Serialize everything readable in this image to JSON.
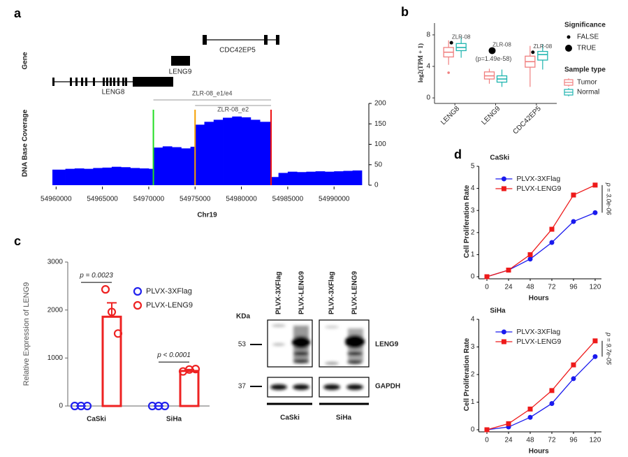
{
  "chart_data": [
    {
      "type": "area",
      "panel": "a",
      "gene_track_label": "Gene",
      "genes": [
        "LENG8",
        "LENG9",
        "CDC42EP5"
      ],
      "ylabel": "DNA Base Coverage",
      "xlabel": "Chr19",
      "color": "#0000ff",
      "x": [
        54959600,
        54961000,
        54962000,
        54963000,
        54964000,
        54965000,
        54966000,
        54967000,
        54968000,
        54969000,
        54970000,
        54970500,
        54971500,
        54972500,
        54973500,
        54974500,
        54975000,
        54976000,
        54977000,
        54978000,
        54979000,
        54980000,
        54981000,
        54982000,
        54983200,
        54984000,
        54985000,
        54986000,
        54987000,
        54988000,
        54989000,
        54990000,
        54991000,
        54992000
      ],
      "values": [
        38,
        40,
        41,
        40,
        42,
        43,
        45,
        44,
        42,
        41,
        40,
        92,
        95,
        93,
        90,
        94,
        148,
        155,
        160,
        165,
        168,
        166,
        160,
        155,
        20,
        30,
        33,
        32,
        33,
        34,
        33,
        34,
        35,
        36
      ],
      "xlim": [
        54959600,
        54993000
      ],
      "ylim": [
        0,
        200
      ],
      "xticks": [
        54960000,
        54965000,
        54970000,
        54975000,
        54980000,
        54985000,
        54990000
      ],
      "yticks": [
        0,
        50,
        100,
        150,
        200
      ],
      "markers": [
        {
          "x": 54970500,
          "color": "#22dd22"
        },
        {
          "x": 54975000,
          "color": "#f5a000"
        },
        {
          "x": 54983200,
          "color": "#ee1111"
        }
      ],
      "annotations": [
        {
          "text": "ZLR-08_e1/e4",
          "x": [
            54970500,
            54983200
          ]
        },
        {
          "text": "ZLR-08_e2",
          "x": [
            54975000,
            54983200
          ]
        }
      ]
    },
    {
      "type": "box",
      "panel": "b",
      "ylabel": "log2(TPM + 1)",
      "categories": [
        "LENG8",
        "LENG9",
        "CDC42EP5"
      ],
      "ylim": [
        -0.7,
        9.5
      ],
      "yticks": [
        0,
        4,
        8
      ],
      "legend_title": "Sample type",
      "series": [
        {
          "name": "Tumor",
          "color": "#f07f7f",
          "min": [
            4.2,
            1.8,
            1.4
          ],
          "q1": [
            5.2,
            2.4,
            3.9
          ],
          "median": [
            5.8,
            2.8,
            4.6
          ],
          "q3": [
            6.4,
            3.3,
            5.3
          ],
          "max": [
            7.3,
            3.7,
            6.6
          ],
          "outliers": [
            [
              3.2
            ],
            [],
            []
          ]
        },
        {
          "name": "Normal",
          "color": "#20b5b0",
          "min": [
            5.1,
            1.4,
            3.6
          ],
          "q1": [
            6.0,
            2.0,
            4.8
          ],
          "median": [
            6.4,
            2.4,
            5.5
          ],
          "q3": [
            6.9,
            2.8,
            5.9
          ],
          "max": [
            7.8,
            3.6,
            6.8
          ],
          "outliers": [
            [],
            [],
            []
          ]
        }
      ],
      "significance": {
        "title": "Significance",
        "levels": [
          "FALSE",
          "TRUE"
        ],
        "values": [
          7.0,
          6.0,
          5.8
        ],
        "significant": [
          false,
          true,
          false
        ],
        "labels": [
          "ZLR-08",
          "ZLR-08",
          "ZLR-08"
        ],
        "p_labels": [
          null,
          "(p=1.49e-58)",
          null
        ]
      }
    },
    {
      "type": "bar",
      "panel": "c",
      "ylabel": "Relative Expression of LENG9",
      "categories": [
        "CaSki",
        "SiHa"
      ],
      "ylim": [
        0,
        3000
      ],
      "yticks": [
        0,
        1000,
        2000,
        3000
      ],
      "series": [
        {
          "name": "PLVX-3XFlag",
          "color": "#2222ee",
          "values": [
            0,
            0
          ],
          "errors": [
            0,
            0
          ],
          "points": [
            [
              0,
              0,
              0
            ],
            [
              0,
              0,
              0
            ]
          ]
        },
        {
          "name": "PLVX-LENG9",
          "color": "#ee2222",
          "values": [
            1860,
            730
          ],
          "errors": [
            290,
            30
          ],
          "points": [
            [
              2430,
              1960,
              1510
            ],
            [
              720,
              760,
              770
            ]
          ]
        }
      ],
      "p_labels": [
        "p = 0.0023",
        "p < 0.0001"
      ]
    },
    {
      "type": "line",
      "panel": "d",
      "title": "CaSki",
      "xlabel": "Hours",
      "ylabel": "Cell Proliferation Rate",
      "x": [
        0,
        24,
        48,
        72,
        96,
        120
      ],
      "xlim": [
        -9,
        127
      ],
      "ylim": [
        0,
        5
      ],
      "xticks": [
        0,
        24,
        48,
        72,
        96,
        120
      ],
      "yticks": [
        0,
        1,
        2,
        3,
        4,
        5
      ],
      "series": [
        {
          "name": "PLVX-3XFlag",
          "color": "#1a1aee",
          "marker": "circle",
          "values": [
            0,
            0.3,
            0.8,
            1.55,
            2.5,
            2.9
          ]
        },
        {
          "name": "PLVX-LENG9",
          "color": "#ee1a1a",
          "marker": "square",
          "values": [
            0,
            0.3,
            1.0,
            2.15,
            3.7,
            4.15
          ]
        }
      ],
      "p_label": "p = 3.0e-06"
    },
    {
      "type": "line",
      "title": "SiHa",
      "xlabel": "Hours",
      "ylabel": "Cell Proliferation Rate",
      "x": [
        0,
        24,
        48,
        72,
        96,
        120
      ],
      "xlim": [
        -9,
        127
      ],
      "ylim": [
        0,
        4
      ],
      "xticks": [
        0,
        24,
        48,
        72,
        96,
        120
      ],
      "yticks": [
        0,
        1,
        2,
        3,
        4
      ],
      "series": [
        {
          "name": "PLVX-3XFlag",
          "color": "#1a1aee",
          "marker": "circle",
          "values": [
            0,
            0.1,
            0.45,
            0.95,
            1.85,
            2.65
          ]
        },
        {
          "name": "PLVX-LENG9",
          "color": "#ee1a1a",
          "marker": "square",
          "values": [
            0,
            0.22,
            0.75,
            1.42,
            2.35,
            3.22
          ]
        }
      ],
      "p_label": "p = 9.7e-05"
    }
  ],
  "western_blot": {
    "unit": "KDa",
    "sizes": [
      53,
      37
    ],
    "proteins": [
      "LENG9",
      "GAPDH"
    ],
    "lanes": [
      "PLVX-3XFlag",
      "PLVX-LENG9",
      "PLVX-3XFlag",
      "PLVX-LENG9"
    ],
    "groups": [
      "CaSki",
      "SiHa"
    ]
  }
}
